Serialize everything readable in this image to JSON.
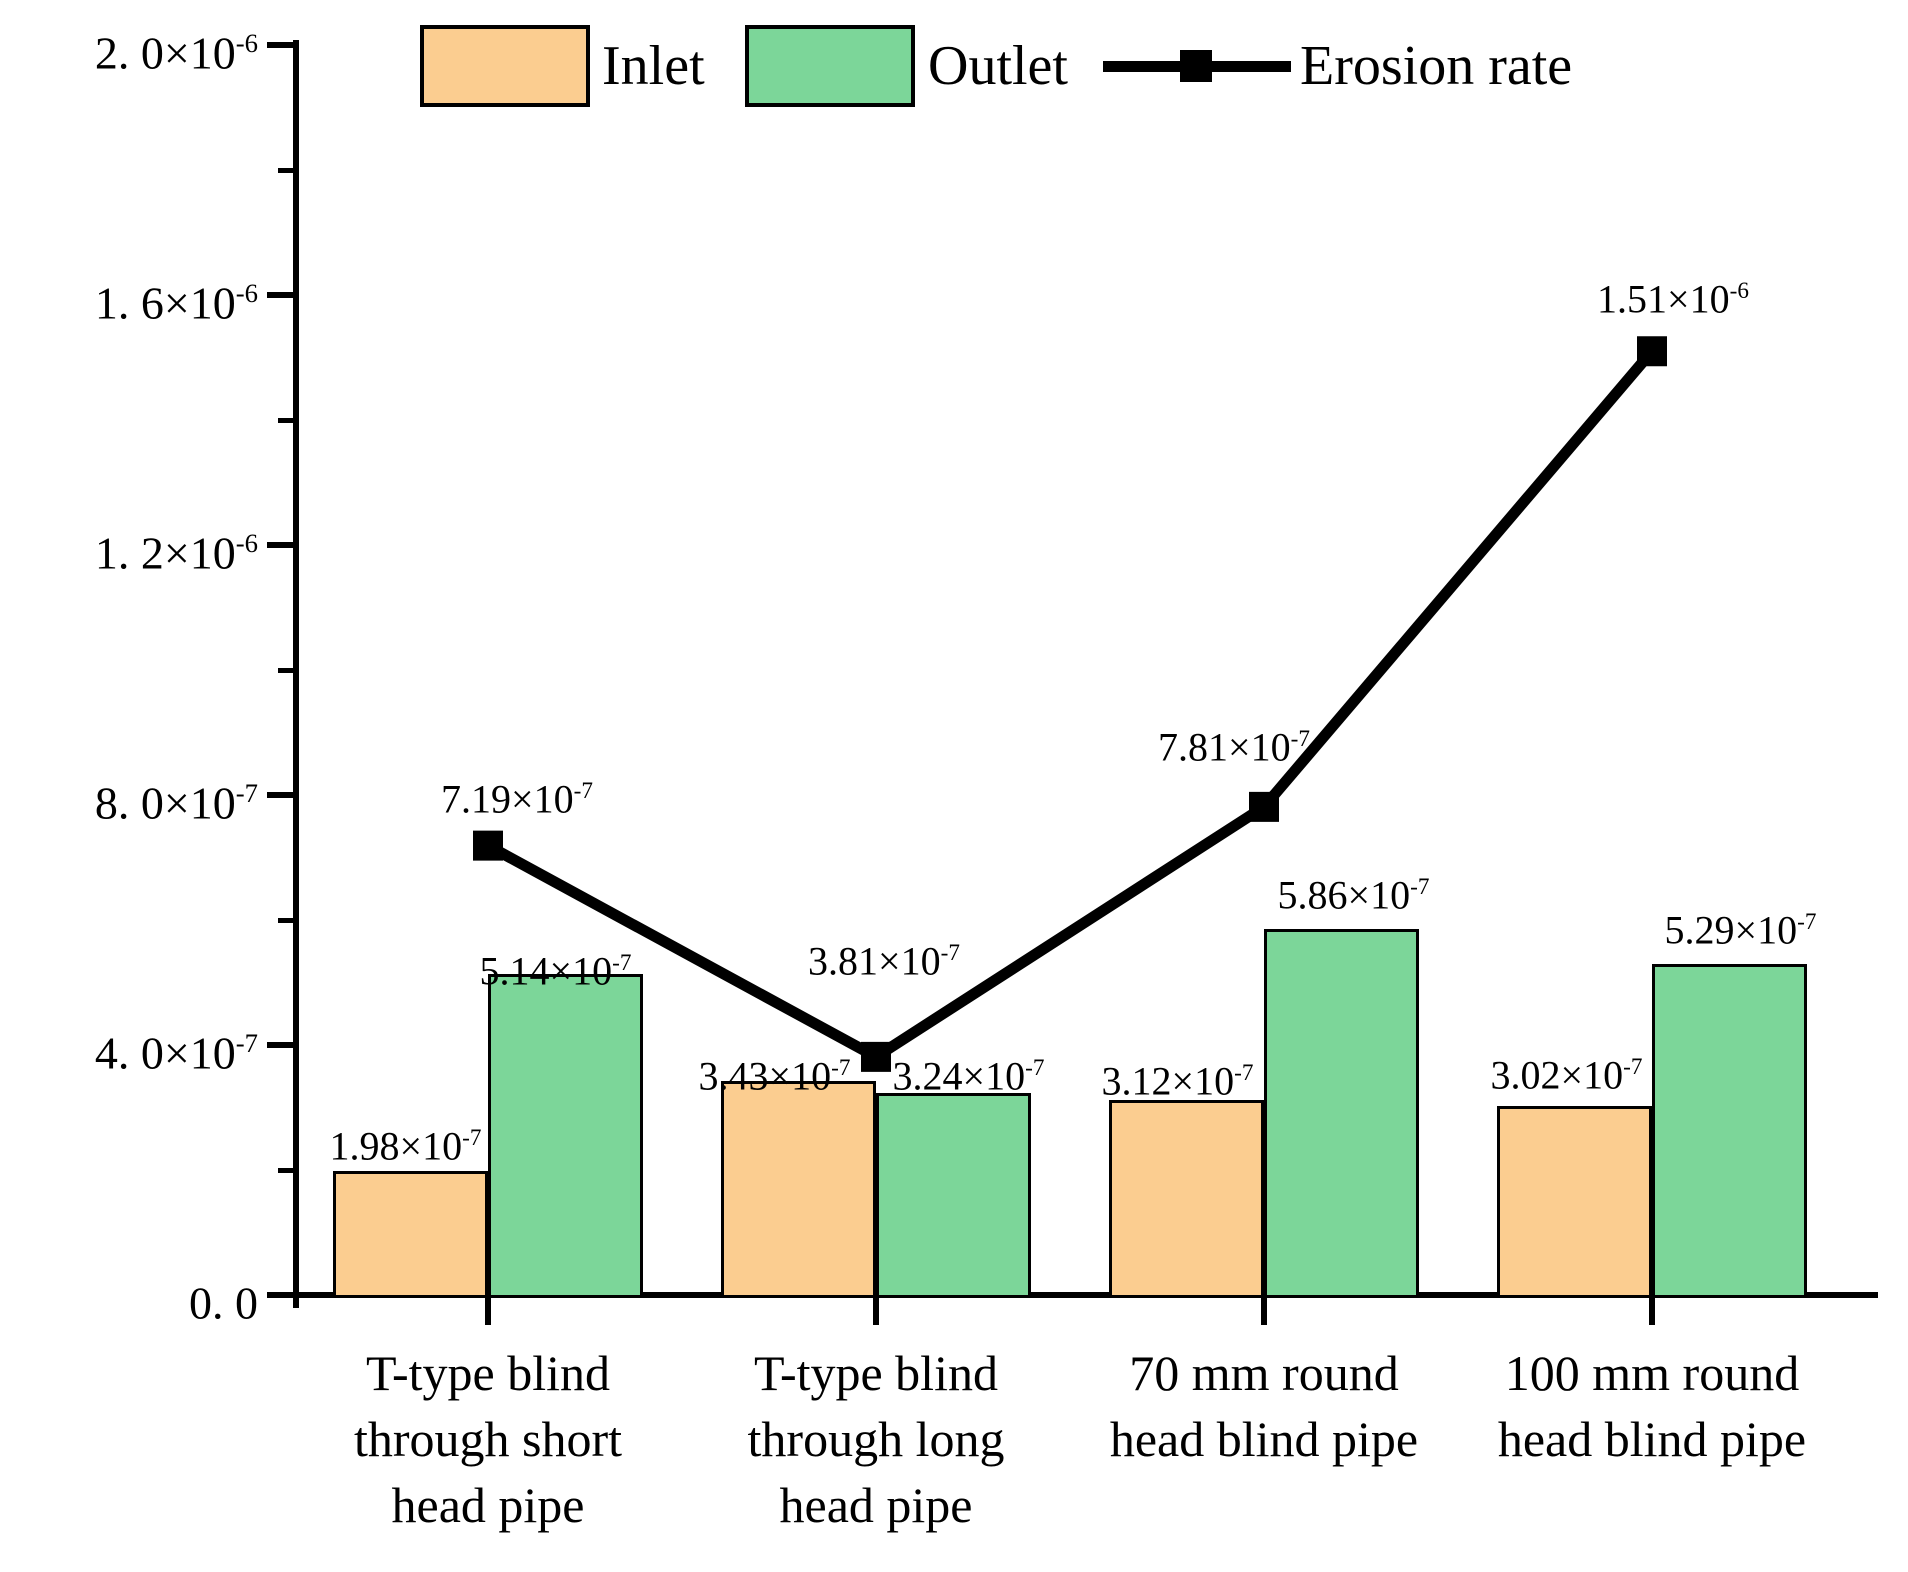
{
  "legend": {
    "items": [
      {
        "label": "Inlet",
        "color": "#FBCD90",
        "type": "box"
      },
      {
        "label": "Outlet",
        "color": "#7CD699",
        "type": "box"
      },
      {
        "label": "Erosion rate",
        "color": "#000000",
        "type": "line-marker"
      }
    ]
  },
  "chart_data": {
    "type": "bar+line",
    "title": "",
    "xlabel": "",
    "ylabel": "",
    "grid": false,
    "legend_position": "top",
    "categories": [
      {
        "label": "T-type blind through short head pipe",
        "lines": [
          "T-type blind",
          "through short",
          "head pipe"
        ]
      },
      {
        "label": "T-type blind through long head pipe",
        "lines": [
          "T-type blind",
          "through long",
          "head pipe"
        ]
      },
      {
        "label": "70 mm round head blind pipe",
        "lines": [
          "70 mm round",
          "head blind pipe"
        ]
      },
      {
        "label": "100 mm round head blind pipe",
        "lines": [
          "100 mm round",
          "head blind pipe"
        ]
      }
    ],
    "bar_series": [
      {
        "name": "Inlet",
        "color": "#FBCD90",
        "values": [
          1.98e-07,
          3.43e-07,
          3.12e-07,
          3.02e-07
        ],
        "labels": [
          {
            "base": "1.98×10",
            "sup": "-7"
          },
          {
            "base": "3.43×10",
            "sup": "-7"
          },
          {
            "base": "3.12×10",
            "sup": "-7"
          },
          {
            "base": "3.02×10",
            "sup": "-7"
          }
        ]
      },
      {
        "name": "Outlet",
        "color": "#7CD699",
        "values": [
          5.14e-07,
          3.24e-07,
          5.86e-07,
          5.29e-07
        ],
        "labels": [
          {
            "base": "5.14×10",
            "sup": "-7"
          },
          {
            "base": "3.24×10",
            "sup": "-7"
          },
          {
            "base": "5.86×10",
            "sup": "-7"
          },
          {
            "base": "5.29×10",
            "sup": "-7"
          }
        ]
      }
    ],
    "line_series": {
      "name": "Erosion rate",
      "color": "#000000",
      "values": [
        7.19e-07,
        3.81e-07,
        7.81e-07,
        1.51e-06
      ],
      "labels": [
        {
          "base": "7.19×10",
          "sup": "-7"
        },
        {
          "base": "3.81×10",
          "sup": "-7"
        },
        {
          "base": "7.81×10",
          "sup": "-7"
        },
        {
          "base": "1.51×10",
          "sup": "-6"
        }
      ]
    },
    "y_axis": {
      "ylim": [
        0,
        2e-06
      ],
      "major_ticks": [
        {
          "value": 0,
          "base": "0. 0",
          "sup": ""
        },
        {
          "value": 4e-07,
          "base": "4. 0×10",
          "sup": "-7"
        },
        {
          "value": 8e-07,
          "base": "8. 0×10",
          "sup": "-7"
        },
        {
          "value": 1.2e-06,
          "base": "1. 2×10",
          "sup": "-6"
        },
        {
          "value": 1.6e-06,
          "base": "1. 6×10",
          "sup": "-6"
        },
        {
          "value": 2e-06,
          "base": "2. 0×10",
          "sup": "-6"
        }
      ],
      "minor_ticks": [
        2e-07,
        6e-07,
        1e-06,
        1.4e-06,
        1.8e-06
      ]
    }
  }
}
